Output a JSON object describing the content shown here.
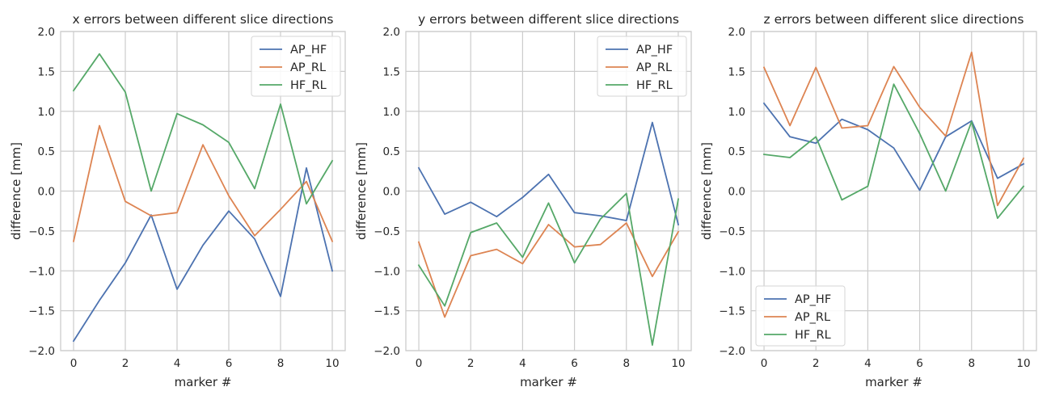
{
  "chart_data": [
    {
      "type": "line",
      "title": "x errors between different slice directions",
      "xlabel": "marker #",
      "ylabel": "difference [mm]",
      "xlim": [
        -0.5,
        10.5
      ],
      "ylim": [
        -2.0,
        2.0
      ],
      "xticks": [
        0,
        2,
        4,
        6,
        8,
        10
      ],
      "yticks": [
        -2.0,
        -1.5,
        -1.0,
        -0.5,
        0.0,
        0.5,
        1.0,
        1.5,
        2.0
      ],
      "grid": true,
      "legend_position": "top-right",
      "x": [
        0,
        1,
        2,
        3,
        4,
        5,
        6,
        7,
        8,
        9,
        10
      ],
      "series": [
        {
          "name": "AP_HF",
          "color": "#4c72b0",
          "values": [
            -1.88,
            -1.37,
            -0.9,
            -0.3,
            -1.23,
            -0.68,
            -0.25,
            -0.6,
            -1.32,
            0.29,
            -1.0
          ]
        },
        {
          "name": "AP_RL",
          "color": "#dd8452",
          "values": [
            -0.63,
            0.82,
            -0.13,
            -0.31,
            -0.27,
            0.58,
            -0.06,
            -0.56,
            -0.23,
            0.12,
            -0.63
          ]
        },
        {
          "name": "HF_RL",
          "color": "#55a868",
          "values": [
            1.26,
            1.72,
            1.24,
            0.0,
            0.97,
            0.83,
            0.61,
            0.03,
            1.09,
            -0.16,
            0.38
          ]
        }
      ]
    },
    {
      "type": "line",
      "title": "y errors between different slice directions",
      "xlabel": "marker #",
      "ylabel": "difference [mm]",
      "xlim": [
        -0.5,
        10.5
      ],
      "ylim": [
        -2.0,
        2.0
      ],
      "xticks": [
        0,
        2,
        4,
        6,
        8,
        10
      ],
      "yticks": [
        -2.0,
        -1.5,
        -1.0,
        -0.5,
        0.0,
        0.5,
        1.0,
        1.5,
        2.0
      ],
      "grid": true,
      "legend_position": "top-right",
      "x": [
        0,
        1,
        2,
        3,
        4,
        5,
        6,
        7,
        8,
        9,
        10
      ],
      "series": [
        {
          "name": "AP_HF",
          "color": "#4c72b0",
          "values": [
            0.29,
            -0.29,
            -0.14,
            -0.32,
            -0.08,
            0.21,
            -0.27,
            -0.31,
            -0.37,
            0.86,
            -0.42
          ]
        },
        {
          "name": "AP_RL",
          "color": "#dd8452",
          "values": [
            -0.64,
            -1.58,
            -0.81,
            -0.73,
            -0.91,
            -0.42,
            -0.7,
            -0.67,
            -0.4,
            -1.07,
            -0.51
          ]
        },
        {
          "name": "HF_RL",
          "color": "#55a868",
          "values": [
            -0.93,
            -1.44,
            -0.52,
            -0.4,
            -0.83,
            -0.15,
            -0.9,
            -0.35,
            -0.03,
            -1.93,
            -0.1
          ]
        }
      ]
    },
    {
      "type": "line",
      "title": "z errors between different slice directions",
      "xlabel": "marker #",
      "ylabel": "difference [mm]",
      "xlim": [
        -0.5,
        10.5
      ],
      "ylim": [
        -2.0,
        2.0
      ],
      "xticks": [
        0,
        2,
        4,
        6,
        8,
        10
      ],
      "yticks": [
        -2.0,
        -1.5,
        -1.0,
        -0.5,
        0.0,
        0.5,
        1.0,
        1.5,
        2.0
      ],
      "grid": true,
      "legend_position": "bottom-left",
      "x": [
        0,
        1,
        2,
        3,
        4,
        5,
        6,
        7,
        8,
        9,
        10
      ],
      "series": [
        {
          "name": "AP_HF",
          "color": "#4c72b0",
          "values": [
            1.1,
            0.68,
            0.6,
            0.9,
            0.77,
            0.54,
            0.01,
            0.68,
            0.88,
            0.16,
            0.34
          ]
        },
        {
          "name": "AP_RL",
          "color": "#dd8452",
          "values": [
            1.55,
            0.82,
            1.55,
            0.79,
            0.82,
            1.56,
            1.05,
            0.69,
            1.74,
            -0.18,
            0.41
          ]
        },
        {
          "name": "HF_RL",
          "color": "#55a868",
          "values": [
            0.46,
            0.42,
            0.68,
            -0.11,
            0.06,
            1.34,
            0.72,
            0.0,
            0.87,
            -0.34,
            0.06
          ]
        }
      ]
    }
  ]
}
